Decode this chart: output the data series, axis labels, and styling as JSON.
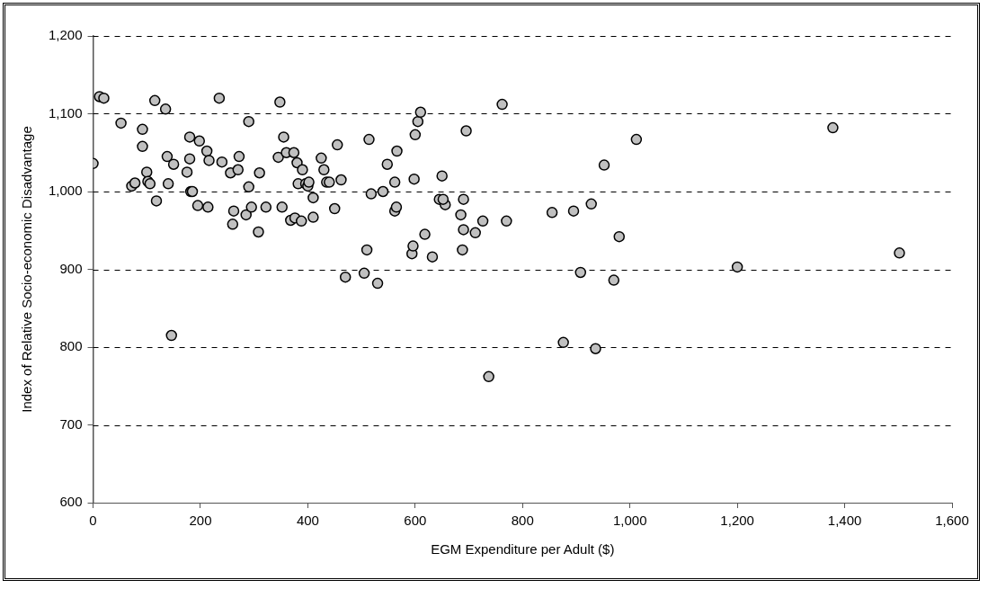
{
  "chart_data": {
    "type": "scatter",
    "xlabel": "EGM Expenditure per Adult ($)",
    "ylabel": "Index of Relative Socio-economic Disadvantage",
    "x": [
      0,
      12,
      20,
      52,
      72,
      78,
      92,
      92,
      100,
      102,
      106,
      115,
      118,
      135,
      138,
      140,
      146,
      150,
      175,
      180,
      180,
      182,
      185,
      195,
      198,
      212,
      214,
      216,
      235,
      240,
      256,
      260,
      262,
      270,
      272,
      285,
      290,
      290,
      295,
      308,
      310,
      322,
      345,
      348,
      352,
      355,
      360,
      368,
      374,
      376,
      380,
      382,
      388,
      390,
      396,
      400,
      402,
      410,
      410,
      425,
      430,
      435,
      440,
      450,
      455,
      462,
      470,
      505,
      510,
      514,
      518,
      530,
      540,
      548,
      562,
      562,
      565,
      566,
      594,
      596,
      598,
      600,
      605,
      610,
      618,
      632,
      645,
      650,
      656,
      652,
      685,
      688,
      690,
      690,
      695,
      712,
      726,
      737,
      762,
      770,
      855,
      876,
      895,
      908,
      928,
      936,
      952,
      970,
      980,
      1012,
      1200,
      1378,
      1502
    ],
    "values": [
      1036,
      1122,
      1120,
      1088,
      1007,
      1011,
      1080,
      1058,
      1025,
      1013,
      1010,
      1117,
      988,
      1106,
      1045,
      1010,
      815,
      1035,
      1025,
      1070,
      1042,
      1000,
      1000,
      982,
      1065,
      1052,
      980,
      1040,
      1120,
      1038,
      1024,
      958,
      975,
      1028,
      1045,
      970,
      1090,
      1006,
      980,
      948,
      1024,
      980,
      1044,
      1115,
      980,
      1070,
      1050,
      963,
      1050,
      966,
      1037,
      1010,
      962,
      1028,
      1010,
      1007,
      1012,
      992,
      967,
      1043,
      1028,
      1012,
      1012,
      978,
      1060,
      1015,
      890,
      895,
      925,
      1067,
      997,
      882,
      1000,
      1035,
      1012,
      975,
      980,
      1052,
      920,
      930,
      1016,
      1073,
      1090,
      1102,
      945,
      916,
      990,
      1020,
      983,
      990,
      970,
      925,
      951,
      990,
      1078,
      947,
      962,
      762,
      1112,
      962,
      973,
      806,
      975,
      896,
      984,
      798,
      1034,
      886,
      942,
      1067,
      903,
      1082,
      921
    ],
    "color": "#c0c0c0",
    "marker": "circle",
    "xlim": [
      0,
      1600
    ],
    "xticks": [
      {
        "value": 0,
        "label": "0"
      },
      {
        "value": 200,
        "label": "200"
      },
      {
        "value": 400,
        "label": "400"
      },
      {
        "value": 600,
        "label": "600"
      },
      {
        "value": 800,
        "label": "800"
      },
      {
        "value": 1000,
        "label": "1,000"
      },
      {
        "value": 1200,
        "label": "1,200"
      },
      {
        "value": 1400,
        "label": "1,400"
      },
      {
        "value": 1600,
        "label": "1,600"
      }
    ],
    "ylim": [
      600,
      1200
    ],
    "yticks": [
      {
        "value": 600,
        "label": "600"
      },
      {
        "value": 700,
        "label": "700"
      },
      {
        "value": 800,
        "label": "800"
      },
      {
        "value": 900,
        "label": "900"
      },
      {
        "value": 1000,
        "label": "1,000"
      },
      {
        "value": 1100,
        "label": "1,100"
      },
      {
        "value": 1200,
        "label": "1,200"
      }
    ],
    "grid": "y",
    "legend": false
  }
}
